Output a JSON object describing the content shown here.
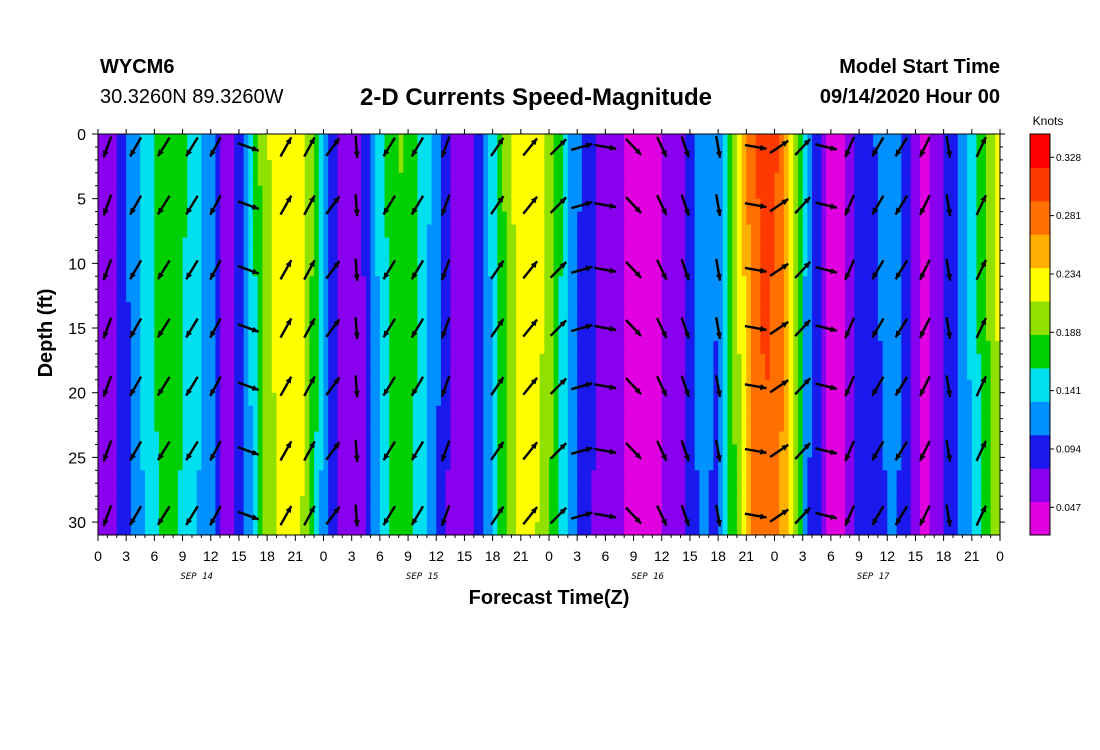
{
  "header": {
    "station_id": "WYCM6",
    "location": "30.3260N 89.3260W",
    "title": "2-D Currents Speed-Magnitude",
    "model_start_label": "Model Start Time",
    "model_start_value": "09/14/2020 Hour 00"
  },
  "chart_data": {
    "type": "heatmap",
    "title": "2-D Currents Speed-Magnitude",
    "xlabel": "Forecast Time(Z)",
    "ylabel": "Depth (ft)",
    "x_tick_labels": [
      "0",
      "3",
      "6",
      "9",
      "12",
      "15",
      "18",
      "21",
      "0",
      "3",
      "6",
      "9",
      "12",
      "15",
      "18",
      "21",
      "0",
      "3",
      "6",
      "9",
      "12",
      "15",
      "18",
      "21",
      "0",
      "3",
      "6",
      "9",
      "12",
      "15",
      "18",
      "21",
      "0"
    ],
    "date_labels": [
      "SEP 14",
      "SEP 15",
      "SEP 16",
      "SEP 17"
    ],
    "xlim_hours": [
      0,
      96
    ],
    "ylim_ft": [
      0,
      31
    ],
    "y_ticks": [
      0,
      5,
      10,
      15,
      20,
      25,
      30
    ],
    "y_inverted": true,
    "colorbar": {
      "unit": "Knots",
      "ticks": [
        "0.328",
        "0.281",
        "0.234",
        "0.188",
        "0.141",
        "0.094",
        "0.047"
      ],
      "colors": [
        "#e000e0",
        "#8800ee",
        "#1a1aee",
        "#0090ff",
        "#00e0ee",
        "#00d000",
        "#90e000",
        "#ffff00",
        "#ffb000",
        "#ff7000",
        "#ff3a00",
        "#ff0000"
      ]
    },
    "speed_profile": {
      "hours": [
        0,
        1.5,
        4,
        6.5,
        8.5,
        10.5,
        12.5,
        13.5,
        14.5,
        16,
        17.5,
        19.5,
        21.5,
        23,
        24,
        25.5,
        26.5,
        28,
        30,
        32,
        34,
        36,
        38,
        39.5,
        41,
        43,
        45,
        47,
        48.5,
        50,
        52,
        54,
        56,
        58,
        60,
        62,
        64,
        66,
        68,
        69.5,
        71,
        72.5,
        74,
        75.5,
        77,
        78,
        79.5,
        81,
        83,
        85,
        87,
        88,
        90,
        92,
        94,
        96
      ],
      "speeds": [
        0.06,
        0.045,
        0.11,
        0.16,
        0.16,
        0.13,
        0.09,
        0.04,
        0.06,
        0.11,
        0.19,
        0.23,
        0.23,
        0.17,
        0.11,
        0.06,
        0.03,
        0.05,
        0.13,
        0.18,
        0.15,
        0.1,
        0.04,
        0.05,
        0.09,
        0.17,
        0.23,
        0.22,
        0.18,
        0.12,
        0.07,
        0.05,
        0.03,
        0.02,
        0.03,
        0.05,
        0.1,
        0.09,
        0.2,
        0.28,
        0.31,
        0.29,
        0.22,
        0.1,
        0.06,
        0.01,
        0.03,
        0.07,
        0.09,
        0.1,
        0.05,
        0.02,
        0.06,
        0.1,
        0.16,
        0.22
      ]
    },
    "direction_profile": {
      "hours": [
        0,
        1.5,
        4,
        6,
        9,
        12,
        13.5,
        15,
        17,
        19,
        22,
        24,
        25.5,
        28,
        32,
        36,
        38,
        40,
        43,
        47,
        49,
        52,
        55,
        58,
        62,
        66,
        69,
        72,
        74,
        76.5,
        79,
        82,
        86,
        90,
        93,
        96
      ],
      "deg": [
        190,
        205,
        210,
        212,
        212,
        210,
        205,
        180,
        40,
        30,
        28,
        30,
        40,
        210,
        212,
        210,
        190,
        30,
        35,
        40,
        45,
        80,
        110,
        150,
        160,
        170,
        120,
        60,
        45,
        40,
        200,
        210,
        212,
        200,
        25,
        25
      ]
    },
    "arrow_times": [
      1,
      4,
      7,
      10,
      12.5,
      16,
      20,
      22.5,
      25,
      27.5,
      31,
      34,
      37,
      42.5,
      46,
      49,
      51.5,
      54,
      57,
      60,
      62.5,
      66,
      70,
      72.5,
      75,
      77.5,
      80,
      83,
      85.5,
      88,
      90.5,
      94
    ],
    "arrow_depths": [
      1,
      5.5,
      10.5,
      15,
      19.5,
      24.5,
      29.5
    ]
  }
}
